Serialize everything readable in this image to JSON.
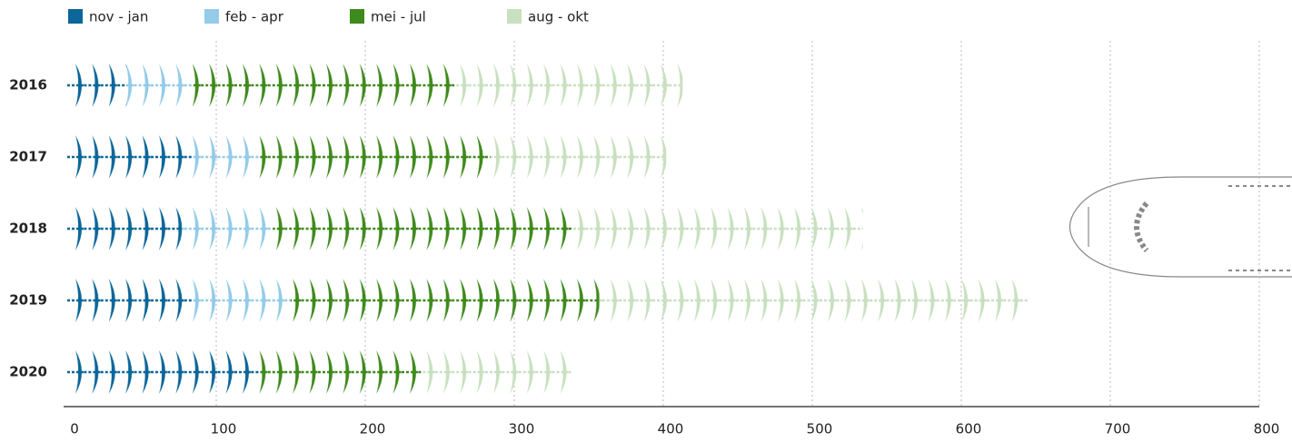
{
  "chart_data": {
    "type": "pictogram_stacked_bar",
    "categories": [
      "2016",
      "2017",
      "2018",
      "2019",
      "2020"
    ],
    "series": [
      {
        "name": "nov - jan",
        "color": "#0b6699",
        "values": [
          40,
          84,
          77,
          84,
          129
        ]
      },
      {
        "name": "feb - apr",
        "color": "#93cbe8",
        "values": [
          44,
          45,
          61,
          66,
          0
        ]
      },
      {
        "name": "mei - jul",
        "color": "#3e8a1c",
        "values": [
          176,
          155,
          201,
          207,
          109
        ]
      },
      {
        "name": "aug - okt",
        "color": "#c8e0c0",
        "values": [
          153,
          118,
          195,
          288,
          100
        ]
      }
    ],
    "xlim": [
      0,
      800
    ],
    "xticks": [
      0,
      100,
      200,
      300,
      400,
      500,
      600,
      700,
      800
    ],
    "grid": true
  }
}
